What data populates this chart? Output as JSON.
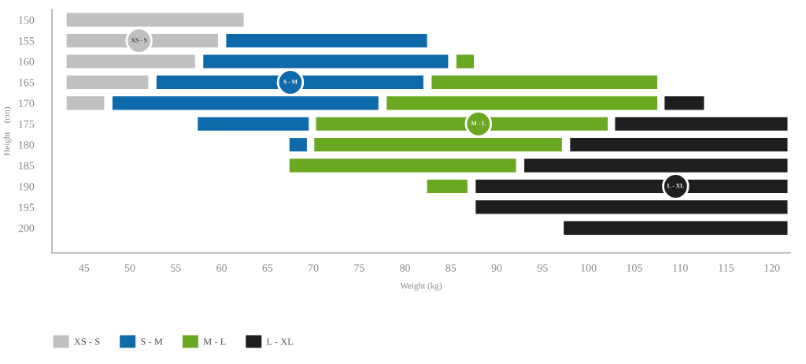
{
  "chart_data": {
    "type": "bar",
    "orientation": "horizontal",
    "xlabel": "Weight (kg)",
    "ylabel": "Height    (cm)",
    "categories": [
      "150",
      "155",
      "160",
      "165",
      "170",
      "175",
      "180",
      "185",
      "190",
      "195",
      "200"
    ],
    "xlim": [
      41.5,
      122
    ],
    "xticks": [
      45,
      50,
      55,
      60,
      65,
      70,
      75,
      80,
      85,
      90,
      95,
      100,
      105,
      110,
      115,
      120
    ],
    "legend": "bottom left",
    "grid": false,
    "series": [
      {
        "name": "XS - S",
        "color": "#c0c0c0",
        "base": [
          43.1,
          43.1,
          43.1,
          43.1,
          43.1,
          null,
          null,
          null,
          null,
          null,
          null
        ],
        "values": [
          19.3,
          16.5,
          14.0,
          8.9,
          4.1,
          null,
          null,
          null,
          null,
          null,
          null
        ]
      },
      {
        "name": "S - M",
        "color": "#0f6aab",
        "base": [
          null,
          60.5,
          58.0,
          52.9,
          48.1,
          57.4,
          67.4,
          null,
          null,
          null,
          null
        ],
        "values": [
          null,
          21.9,
          26.7,
          29.1,
          29.0,
          12.1,
          1.9,
          null,
          null,
          null,
          null
        ]
      },
      {
        "name": "M - L",
        "color": "#6aa821",
        "base": [
          null,
          null,
          85.6,
          82.9,
          78.0,
          70.3,
          70.1,
          67.4,
          82.4,
          null,
          null
        ],
        "values": [
          null,
          null,
          1.9,
          24.6,
          29.5,
          31.8,
          27.0,
          24.7,
          4.4,
          null,
          null
        ]
      },
      {
        "name": "L - XL",
        "color": "#1e1e1e",
        "base": [
          null,
          null,
          null,
          null,
          108.3,
          102.9,
          98.0,
          93.0,
          87.7,
          87.7,
          97.3
        ],
        "values": [
          null,
          null,
          null,
          null,
          4.3,
          18.8,
          23.7,
          28.7,
          34.0,
          34.0,
          24.4
        ]
      }
    ],
    "annotations": [
      {
        "text": "XS - S",
        "x": 51,
        "y": "155"
      },
      {
        "text": "S - M",
        "x": 67.5,
        "y": "165"
      },
      {
        "text": "M - L",
        "x": 88,
        "y": "175"
      },
      {
        "text": "L - XL",
        "x": 109.5,
        "y": "190"
      }
    ]
  }
}
